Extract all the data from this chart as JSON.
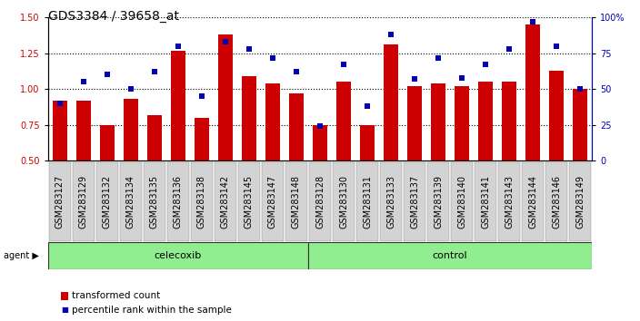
{
  "title": "GDS3384 / 39658_at",
  "samples": [
    "GSM283127",
    "GSM283129",
    "GSM283132",
    "GSM283134",
    "GSM283135",
    "GSM283136",
    "GSM283138",
    "GSM283142",
    "GSM283145",
    "GSM283147",
    "GSM283148",
    "GSM283128",
    "GSM283130",
    "GSM283131",
    "GSM283133",
    "GSM283137",
    "GSM283139",
    "GSM283140",
    "GSM283141",
    "GSM283143",
    "GSM283144",
    "GSM283146",
    "GSM283149"
  ],
  "red_bars": [
    0.92,
    0.92,
    0.75,
    0.93,
    0.82,
    1.27,
    0.8,
    1.38,
    1.09,
    1.04,
    0.97,
    0.75,
    1.05,
    0.75,
    1.31,
    1.02,
    1.04,
    1.02,
    1.05,
    1.05,
    1.45,
    1.13,
    1.0
  ],
  "blue_squares": [
    40,
    55,
    60,
    50,
    62,
    80,
    45,
    83,
    78,
    72,
    62,
    24,
    67,
    38,
    88,
    57,
    72,
    58,
    67,
    78,
    97,
    80,
    50
  ],
  "celecoxib_count": 11,
  "control_count": 12,
  "ylim_left": [
    0.5,
    1.5
  ],
  "ylim_right": [
    0,
    100
  ],
  "yticks_left": [
    0.5,
    0.75,
    1.0,
    1.25,
    1.5
  ],
  "yticks_right": [
    0,
    25,
    50,
    75,
    100
  ],
  "ytick_labels_right": [
    "0",
    "25",
    "50",
    "75",
    "100%"
  ],
  "bar_color": "#cc0000",
  "square_color": "#0000bb",
  "agent_green": "#90ee90",
  "bar_width": 0.6,
  "tick_color_left": "#cc0000",
  "tick_color_right": "#0000bb",
  "grid_linestyle": "dotted",
  "font_size_ticks": 7,
  "font_size_title": 10,
  "font_size_agent": 8,
  "font_size_legend": 7.5
}
